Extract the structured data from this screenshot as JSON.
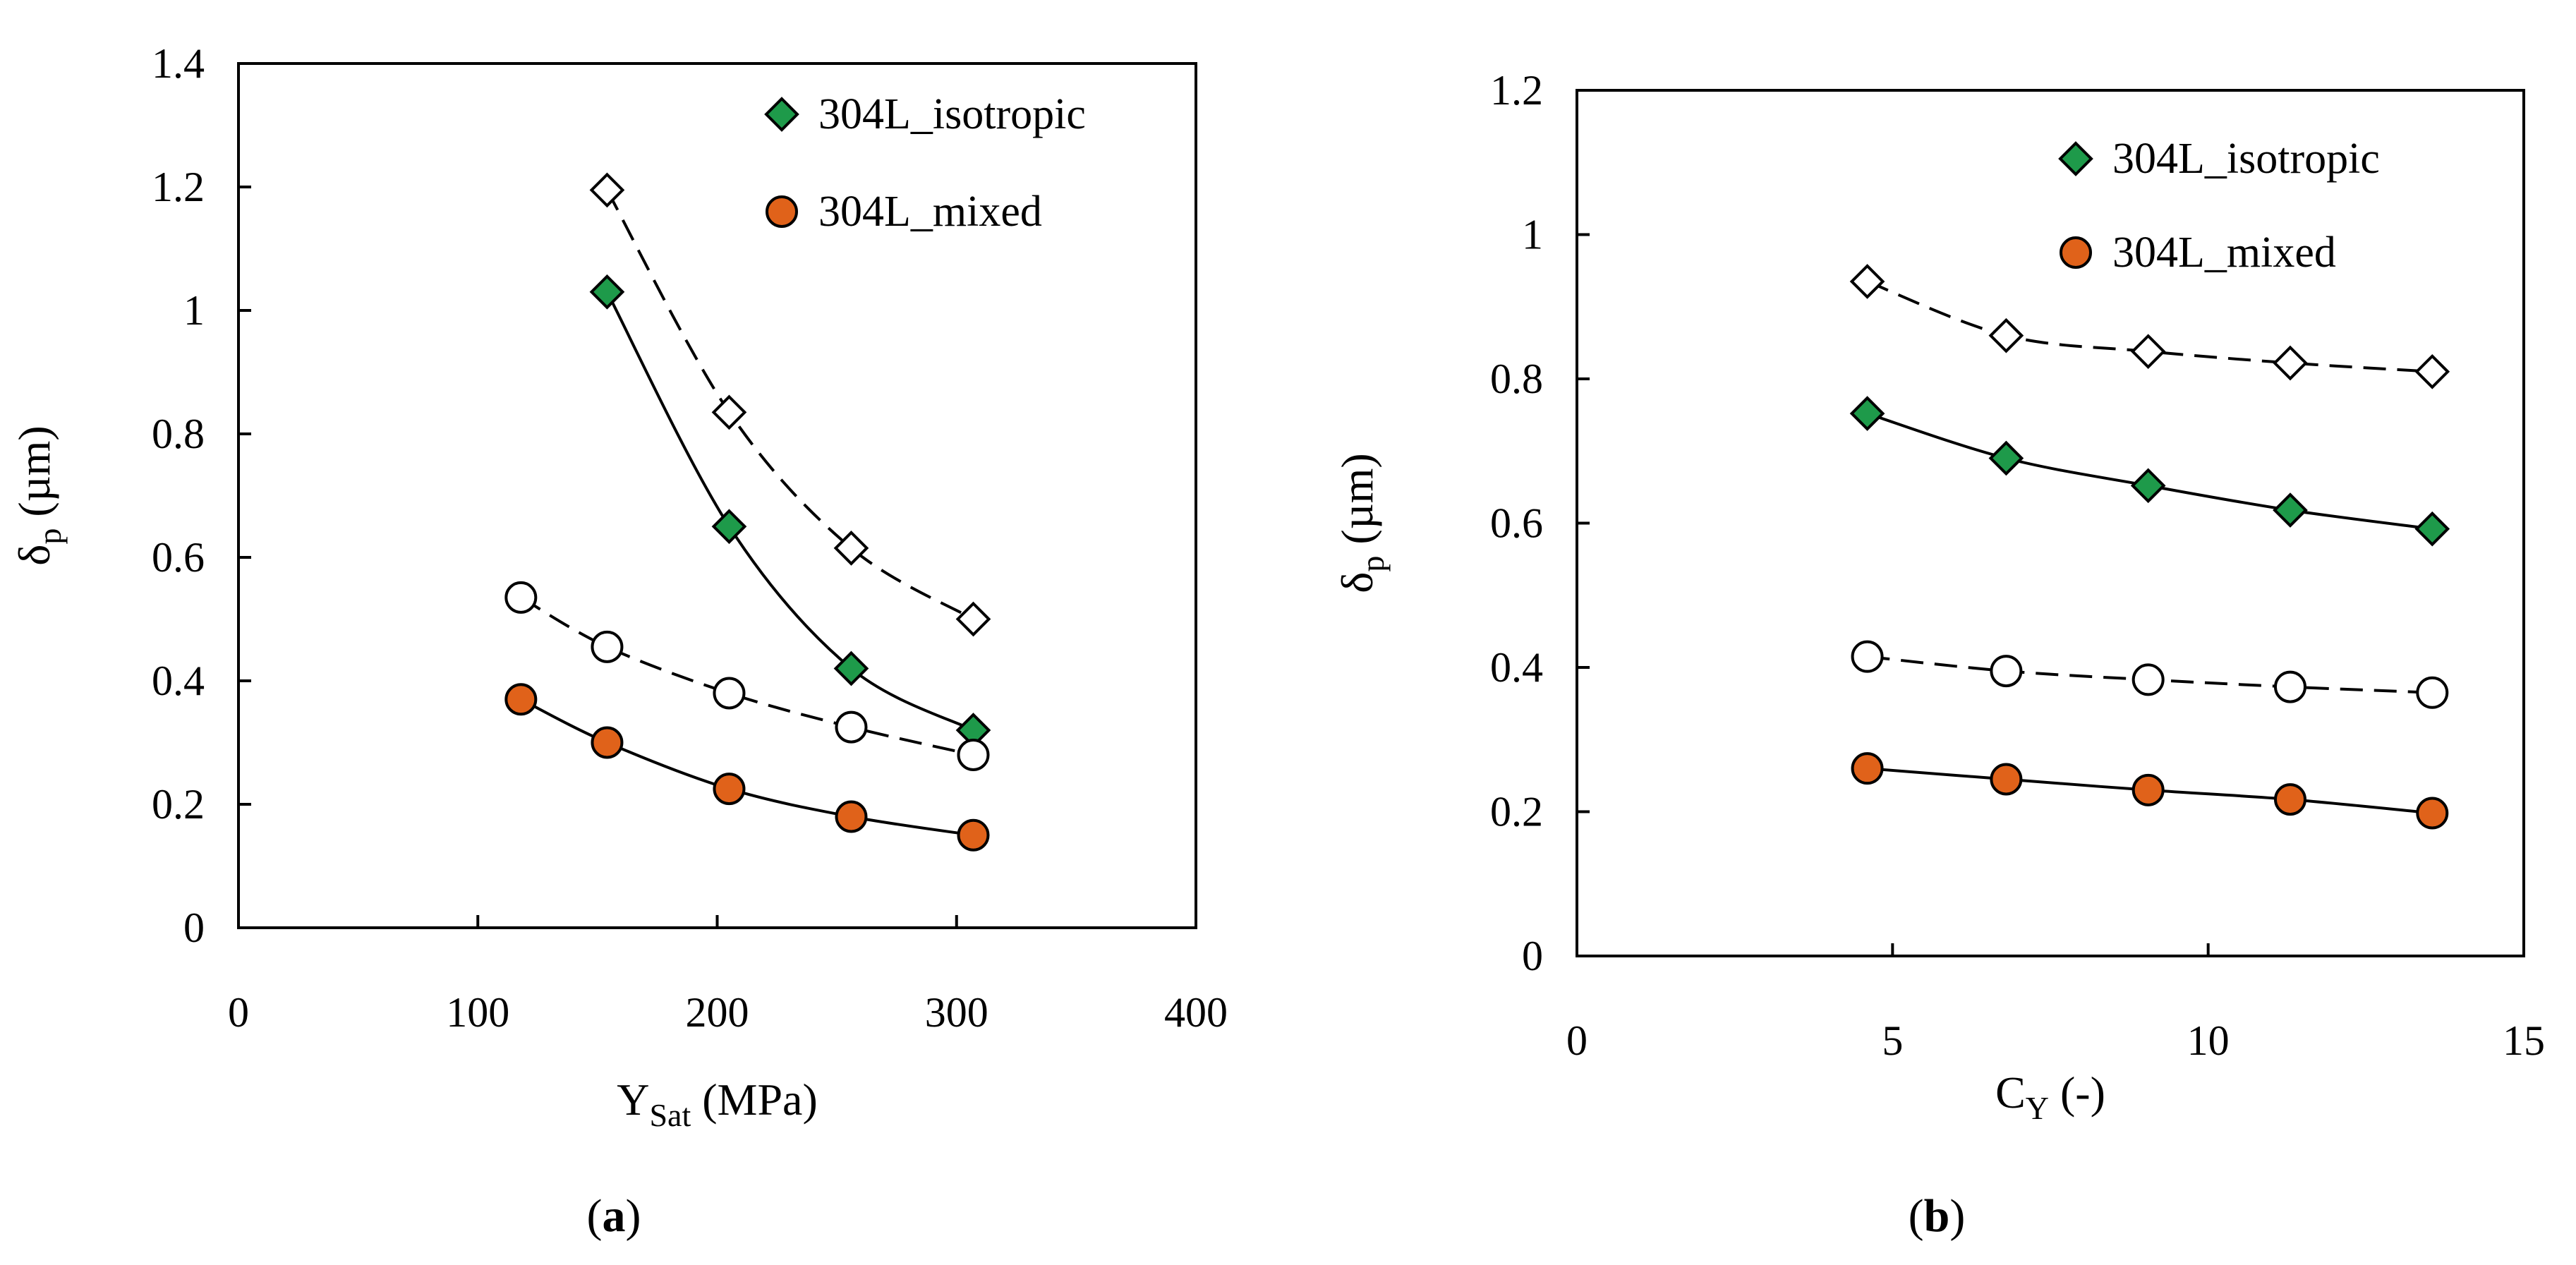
{
  "chart_data": [
    {
      "type": "scatter",
      "panel_label": {
        "open": "(",
        "letter": "a",
        "close": ")"
      },
      "xlabel": {
        "main": "Y",
        "sub": "Sat",
        "unit": " (MPa)"
      },
      "ylabel": {
        "main": "δ",
        "sub": "p",
        "unit": " (µm)"
      },
      "xlim": [
        0,
        400
      ],
      "ylim": [
        0,
        1.4
      ],
      "xticks": [
        0,
        100,
        200,
        300,
        400
      ],
      "yticks": [
        0,
        0.2,
        0.4,
        0.6,
        0.8,
        1,
        1.2,
        1.4
      ],
      "xtick_labels": [
        "0",
        "100",
        "200",
        "300",
        "400"
      ],
      "ytick_labels": [
        "0",
        "0.2",
        "0.4",
        "0.6",
        "0.8",
        "1",
        "1.2",
        "1.4"
      ],
      "legend": {
        "position": "top-right",
        "entries": [
          "304L_isotropic",
          "304L_mixed"
        ]
      },
      "series": [
        {
          "name": "304L_isotropic",
          "marker": "diamond",
          "fill": "#1e9a4a",
          "line": "solid",
          "x": [
            154,
            205,
            256,
            307
          ],
          "y": [
            1.03,
            0.65,
            0.42,
            0.32
          ]
        },
        {
          "name": "304L_isotropic (open)",
          "marker": "diamond",
          "fill": "#ffffff",
          "line": "dashed",
          "x": [
            154,
            205,
            256,
            307
          ],
          "y": [
            1.195,
            0.835,
            0.615,
            0.5
          ]
        },
        {
          "name": "304L_mixed",
          "marker": "circle",
          "fill": "#e0621a",
          "line": "solid",
          "x": [
            118,
            154,
            205,
            256,
            307
          ],
          "y": [
            0.37,
            0.3,
            0.225,
            0.18,
            0.15
          ]
        },
        {
          "name": "304L_mixed (open)",
          "marker": "circle",
          "fill": "#ffffff",
          "line": "dashed",
          "x": [
            118,
            154,
            205,
            256,
            307
          ],
          "y": [
            0.535,
            0.455,
            0.38,
            0.325,
            0.28
          ]
        }
      ]
    },
    {
      "type": "scatter",
      "panel_label": {
        "open": "(",
        "letter": "b",
        "close": ")"
      },
      "xlabel": {
        "main": "C",
        "sub": "Y",
        "unit": " (-)"
      },
      "ylabel": {
        "main": "δ",
        "sub": "p",
        "unit": " (µm)"
      },
      "xlim": [
        0,
        15
      ],
      "ylim": [
        0,
        1.2
      ],
      "xticks": [
        0,
        5,
        10,
        15
      ],
      "yticks": [
        0,
        0.2,
        0.4,
        0.6,
        0.8,
        1,
        1.2
      ],
      "xtick_labels": [
        "0",
        "5",
        "10",
        "15"
      ],
      "ytick_labels": [
        "0",
        "0.2",
        "0.4",
        "0.6",
        "0.8",
        "1",
        "1.2"
      ],
      "legend": {
        "position": "top-right",
        "entries": [
          "304L_isotropic",
          "304L_mixed"
        ]
      },
      "series": [
        {
          "name": "304L_isotropic",
          "marker": "diamond",
          "fill": "#1e9a4a",
          "line": "solid",
          "x": [
            4.6,
            6.8,
            9.05,
            11.3,
            13.55
          ],
          "y": [
            0.752,
            0.69,
            0.652,
            0.618,
            0.592
          ]
        },
        {
          "name": "304L_isotropic (open)",
          "marker": "diamond",
          "fill": "#ffffff",
          "line": "dashed",
          "x": [
            4.6,
            6.8,
            9.05,
            11.3,
            13.55
          ],
          "y": [
            0.935,
            0.86,
            0.838,
            0.822,
            0.81
          ]
        },
        {
          "name": "304L_mixed",
          "marker": "circle",
          "fill": "#e0621a",
          "line": "solid",
          "x": [
            4.6,
            6.8,
            9.05,
            11.3,
            13.55
          ],
          "y": [
            0.26,
            0.245,
            0.23,
            0.217,
            0.198
          ]
        },
        {
          "name": "304L_mixed (open)",
          "marker": "circle",
          "fill": "#ffffff",
          "line": "dashed",
          "x": [
            4.6,
            6.8,
            9.05,
            11.3,
            13.55
          ],
          "y": [
            0.415,
            0.395,
            0.383,
            0.373,
            0.365
          ]
        }
      ]
    }
  ]
}
